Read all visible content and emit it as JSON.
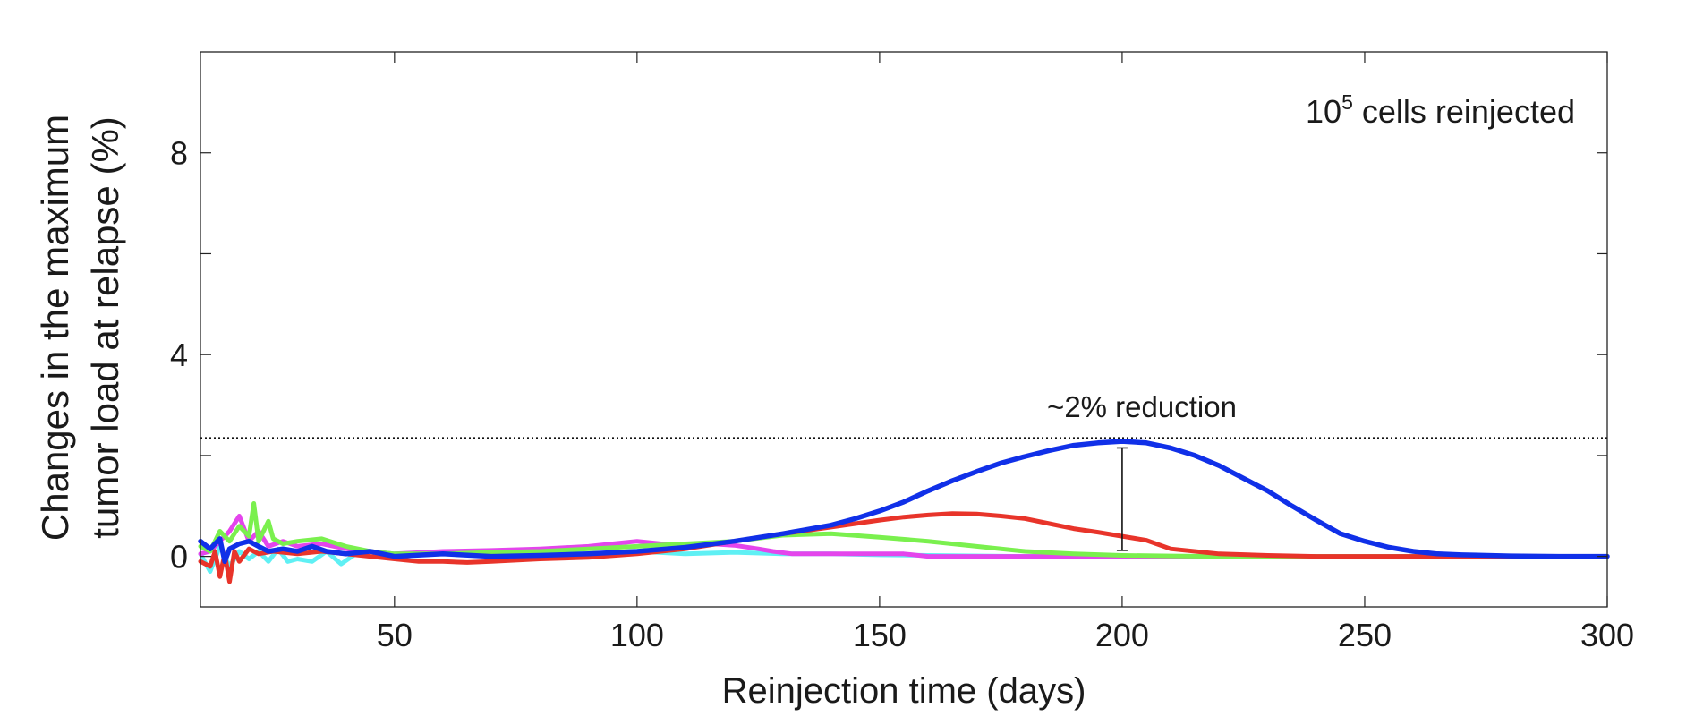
{
  "chart_data": {
    "type": "line",
    "title": "",
    "xlabel": "Reinjection time (days)",
    "ylabel_lines": [
      "Changes in the maximum",
      "tumor load at relapse (%)"
    ],
    "xlim": [
      10,
      300
    ],
    "ylim": [
      -1,
      10
    ],
    "xticks": [
      50,
      100,
      150,
      200,
      250,
      300
    ],
    "yticks": [
      0,
      2,
      4,
      6,
      8
    ],
    "ytick_labels": [
      "0",
      "",
      "4",
      "",
      "8"
    ],
    "annotation": {
      "base": "10",
      "exponent": "5",
      "rest": " cells reinjected",
      "position": "top-right"
    },
    "reference_line": {
      "y": 2.35,
      "label": "~2% reduction",
      "style": "dotted"
    },
    "error_bar": {
      "x": 200,
      "y_low": 0.12,
      "y_high": 2.15
    },
    "series": [
      {
        "name": "cyan",
        "color": "#5ff0f4",
        "x": [
          10,
          12,
          14,
          16,
          18,
          20,
          22,
          24,
          26,
          28,
          30,
          33,
          36,
          39,
          42,
          45,
          50,
          60,
          70,
          80,
          90,
          100,
          110,
          120,
          130,
          140,
          150,
          160,
          180,
          200,
          300
        ],
        "y": [
          0.05,
          -0.3,
          0.2,
          -0.2,
          0.1,
          -0.05,
          0.1,
          -0.1,
          0.15,
          -0.1,
          -0.05,
          -0.1,
          0.1,
          -0.15,
          0.05,
          0.1,
          0.05,
          0.08,
          0.05,
          0.07,
          0.05,
          0.1,
          0.05,
          0.08,
          0.05,
          0.05,
          0.03,
          0.02,
          0,
          0,
          0
        ]
      },
      {
        "name": "magenta",
        "color": "#e445ec",
        "x": [
          10,
          12,
          14,
          16,
          18,
          20,
          22,
          24,
          27,
          30,
          35,
          40,
          45,
          50,
          60,
          70,
          80,
          90,
          95,
          100,
          105,
          110,
          115,
          120,
          125,
          128,
          132,
          140,
          150,
          155,
          160,
          200,
          300
        ],
        "y": [
          0.05,
          0.1,
          0.3,
          0.5,
          0.8,
          0.3,
          0.5,
          0.2,
          0.3,
          0.2,
          0.25,
          0.15,
          0.1,
          0.05,
          0.1,
          0.12,
          0.15,
          0.2,
          0.25,
          0.3,
          0.25,
          0.22,
          0.25,
          0.22,
          0.15,
          0.1,
          0.05,
          0.05,
          0.05,
          0.05,
          0,
          0,
          0
        ]
      },
      {
        "name": "green",
        "color": "#7af04e",
        "x": [
          10,
          12,
          14,
          16,
          18,
          20,
          21,
          22,
          24,
          25,
          27,
          30,
          35,
          40,
          45,
          50,
          60,
          70,
          80,
          90,
          100,
          110,
          120,
          130,
          140,
          150,
          160,
          170,
          180,
          190,
          200,
          210,
          220,
          300
        ],
        "y": [
          0.2,
          0.1,
          0.5,
          0.3,
          0.6,
          0.4,
          1.05,
          0.3,
          0.7,
          0.35,
          0.25,
          0.3,
          0.35,
          0.2,
          0.1,
          0.05,
          0.05,
          0.08,
          0.1,
          0.15,
          0.2,
          0.25,
          0.3,
          0.42,
          0.45,
          0.38,
          0.3,
          0.2,
          0.1,
          0.05,
          0.02,
          0.01,
          0,
          0
        ]
      },
      {
        "name": "red",
        "color": "#e8342a",
        "x": [
          10,
          12,
          13,
          14,
          15,
          16,
          17,
          18,
          20,
          22,
          25,
          30,
          35,
          40,
          45,
          50,
          55,
          60,
          65,
          70,
          80,
          90,
          100,
          110,
          120,
          130,
          140,
          150,
          155,
          160,
          165,
          170,
          175,
          180,
          185,
          190,
          195,
          200,
          205,
          210,
          220,
          230,
          240,
          300
        ],
        "y": [
          -0.1,
          -0.2,
          0.1,
          -0.4,
          0.05,
          -0.5,
          0.1,
          -0.1,
          0.15,
          0.05,
          0.1,
          0.05,
          0.1,
          0.05,
          0.0,
          -0.05,
          -0.1,
          -0.1,
          -0.12,
          -0.1,
          -0.05,
          -0.02,
          0.05,
          0.15,
          0.3,
          0.45,
          0.58,
          0.72,
          0.78,
          0.82,
          0.85,
          0.84,
          0.8,
          0.75,
          0.65,
          0.55,
          0.48,
          0.4,
          0.32,
          0.15,
          0.05,
          0.02,
          0,
          0
        ]
      },
      {
        "name": "blue",
        "color": "#1030e8",
        "x": [
          10,
          12,
          14,
          15,
          16,
          18,
          20,
          22,
          24,
          27,
          30,
          33,
          36,
          40,
          45,
          50,
          60,
          70,
          80,
          90,
          100,
          110,
          120,
          130,
          140,
          145,
          150,
          155,
          160,
          165,
          170,
          175,
          180,
          185,
          190,
          195,
          200,
          205,
          210,
          215,
          220,
          225,
          230,
          235,
          240,
          245,
          250,
          255,
          260,
          265,
          270,
          280,
          290,
          300
        ],
        "y": [
          0.3,
          0.15,
          0.35,
          -0.1,
          0.15,
          0.25,
          0.3,
          0.2,
          0.1,
          0.15,
          0.1,
          0.2,
          0.1,
          0.05,
          0.1,
          0.0,
          0.05,
          0.0,
          0.02,
          0.05,
          0.1,
          0.18,
          0.3,
          0.45,
          0.62,
          0.75,
          0.9,
          1.08,
          1.3,
          1.5,
          1.68,
          1.85,
          1.98,
          2.1,
          2.2,
          2.25,
          2.28,
          2.25,
          2.15,
          2.0,
          1.8,
          1.55,
          1.3,
          1.0,
          0.72,
          0.45,
          0.3,
          0.18,
          0.1,
          0.05,
          0.03,
          0.01,
          0,
          0
        ]
      }
    ]
  }
}
